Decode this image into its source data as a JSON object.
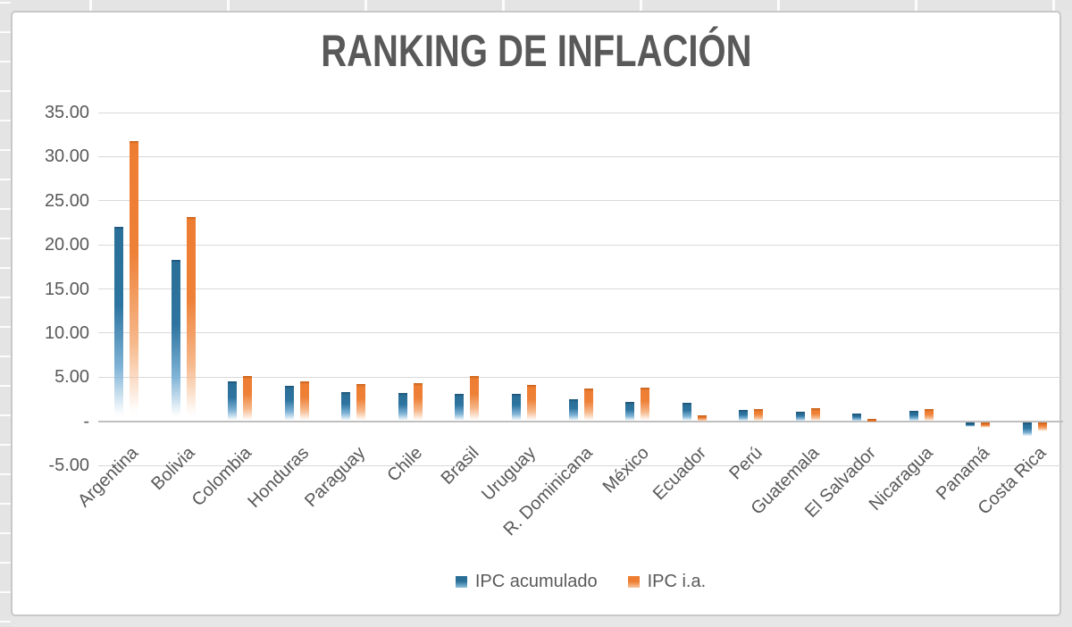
{
  "chart_data": {
    "type": "bar",
    "title": "RANKING DE INFLACIÓN",
    "categories": [
      "Argentina",
      "Bolivia",
      "Colombia",
      "Honduras",
      "Paraguay",
      "Chile",
      "Brasil",
      "Uruguay",
      "R. Dominicana",
      "México",
      "Ecuador",
      "Perú",
      "Guatemala",
      "El Salvador",
      "Nicaragua",
      "Panamá",
      "Costa Rica"
    ],
    "series": [
      {
        "name": "IPC acumulado",
        "color": "#2A6F97",
        "values": [
          22.0,
          18.3,
          4.5,
          4.0,
          3.3,
          3.2,
          3.1,
          3.1,
          2.5,
          2.2,
          2.1,
          1.3,
          1.1,
          0.9,
          1.2,
          -0.5,
          -1.7
        ]
      },
      {
        "name": "IPC i.a.",
        "color": "#ED7D31",
        "values": [
          31.8,
          23.2,
          5.1,
          4.5,
          4.2,
          4.3,
          5.1,
          4.1,
          3.7,
          3.8,
          0.7,
          1.4,
          1.5,
          0.3,
          1.4,
          -0.6,
          -1.0
        ]
      }
    ],
    "ylim": [
      -5,
      35
    ],
    "yticks": {
      "values": [
        35,
        30,
        25,
        20,
        15,
        10,
        5,
        0,
        -5
      ],
      "labels": [
        "35.00",
        "30.00",
        "25.00",
        "20.00",
        "15.00",
        "10.00",
        "5.00",
        "-",
        "-5.00"
      ]
    },
    "grid": true,
    "legend_position": "bottom",
    "xlabel": "",
    "ylabel": ""
  }
}
